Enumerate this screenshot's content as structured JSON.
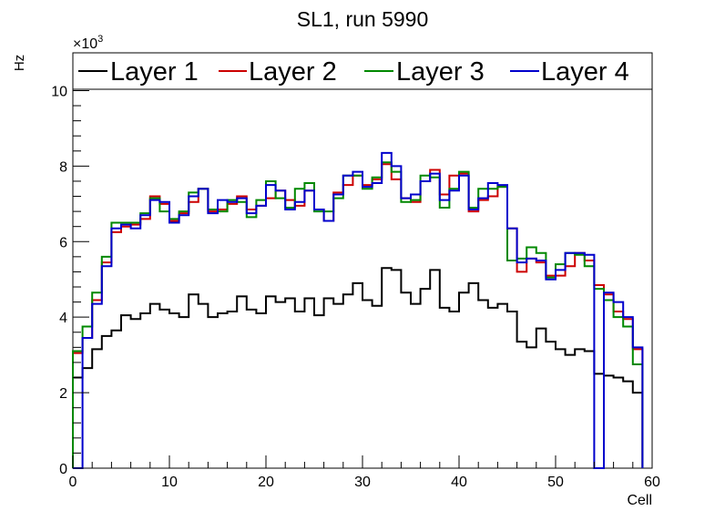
{
  "chart_data": {
    "type": "line",
    "title": "SL1, run 5990",
    "xlabel": "Cell",
    "ylabel": "Hz",
    "y_multiplier_label": "×10",
    "y_multiplier_exponent": "3",
    "xlim": [
      0,
      60
    ],
    "ylim": [
      0,
      11
    ],
    "x_ticks": [
      0,
      10,
      20,
      30,
      40,
      50,
      60
    ],
    "y_ticks": [
      0,
      2,
      4,
      6,
      8,
      10
    ],
    "grid": false,
    "legend_position": "top",
    "x_bin_edges_start": 0,
    "x_bin_width": 1,
    "series": [
      {
        "name": "Layer 1",
        "color": "#000000",
        "values": [
          2.4,
          2.65,
          3.15,
          3.5,
          3.65,
          4.05,
          3.95,
          4.1,
          4.35,
          4.2,
          4.1,
          4.0,
          4.6,
          4.35,
          4.0,
          4.1,
          4.15,
          4.55,
          4.2,
          4.1,
          4.55,
          4.4,
          4.5,
          4.15,
          4.5,
          4.05,
          4.5,
          4.35,
          4.6,
          4.9,
          4.45,
          4.3,
          5.3,
          5.25,
          4.65,
          4.35,
          4.75,
          5.25,
          4.25,
          4.15,
          4.65,
          4.9,
          4.45,
          4.25,
          4.35,
          4.15,
          3.35,
          3.2,
          3.7,
          3.35,
          3.15,
          3.0,
          3.15,
          3.1,
          2.5,
          2.45,
          2.4,
          2.3,
          2.0
        ]
      },
      {
        "name": "Layer 2",
        "color": "#cc0000",
        "values": [
          3.05,
          3.45,
          4.45,
          5.45,
          6.25,
          6.4,
          6.45,
          6.6,
          7.2,
          7.0,
          6.55,
          6.75,
          7.05,
          7.4,
          6.8,
          6.85,
          7.0,
          7.2,
          6.85,
          6.95,
          7.15,
          7.35,
          7.1,
          6.95,
          7.35,
          6.85,
          6.55,
          7.3,
          7.5,
          7.75,
          7.5,
          7.65,
          8.05,
          7.65,
          7.15,
          7.05,
          7.6,
          7.9,
          7.25,
          7.75,
          7.8,
          6.8,
          7.1,
          7.2,
          7.45,
          6.35,
          5.2,
          5.55,
          5.45,
          5.1,
          5.1,
          5.35,
          5.7,
          5.5,
          4.85,
          4.6,
          4.15,
          3.95,
          3.15
        ]
      },
      {
        "name": "Layer 3",
        "color": "#008800",
        "values": [
          3.1,
          3.75,
          4.65,
          5.6,
          6.5,
          6.5,
          6.5,
          6.75,
          7.15,
          6.8,
          6.6,
          6.8,
          7.3,
          7.4,
          6.85,
          6.8,
          7.1,
          7.05,
          6.65,
          7.1,
          7.6,
          7.15,
          6.9,
          7.4,
          7.55,
          6.8,
          6.8,
          7.15,
          7.75,
          7.75,
          7.4,
          7.7,
          8.1,
          7.85,
          7.05,
          7.1,
          7.75,
          7.7,
          6.9,
          7.4,
          7.85,
          6.9,
          7.4,
          7.4,
          7.45,
          5.5,
          5.55,
          5.85,
          5.7,
          5.05,
          5.4,
          5.7,
          5.65,
          5.35,
          4.75,
          4.45,
          4.0,
          3.75,
          2.75
        ]
      },
      {
        "name": "Layer 4",
        "color": "#0000cc",
        "values": [
          0.0,
          3.45,
          4.35,
          5.35,
          6.35,
          6.45,
          6.35,
          6.7,
          7.1,
          7.05,
          6.5,
          6.7,
          7.2,
          7.4,
          6.75,
          7.1,
          7.05,
          7.15,
          6.75,
          6.95,
          7.5,
          7.35,
          6.85,
          7.05,
          7.35,
          6.85,
          6.55,
          7.25,
          7.75,
          7.85,
          7.45,
          7.55,
          8.35,
          8.0,
          7.15,
          7.25,
          7.6,
          7.8,
          7.1,
          7.35,
          7.75,
          6.85,
          7.15,
          7.55,
          7.5,
          6.35,
          5.45,
          5.55,
          5.5,
          5.0,
          5.25,
          5.7,
          5.7,
          5.65,
          0.0,
          4.65,
          4.4,
          4.0,
          3.2
        ]
      }
    ]
  }
}
